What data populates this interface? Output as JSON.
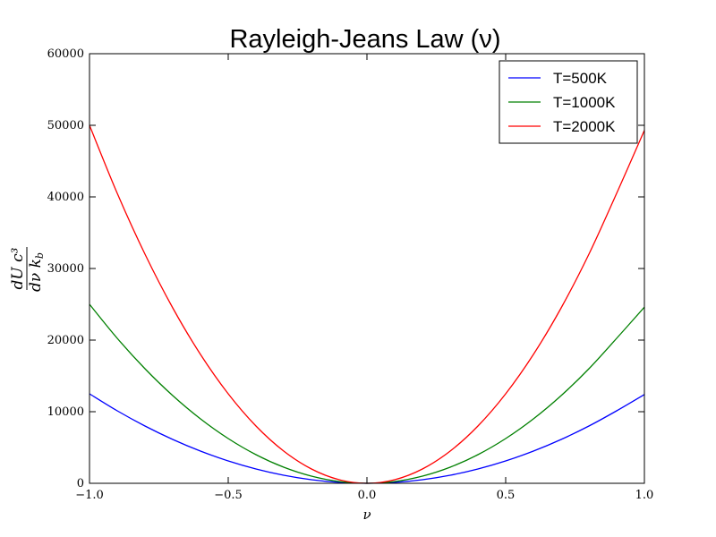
{
  "chart_data": {
    "type": "line",
    "title": "Rayleigh-Jeans Law (ν)",
    "xlabel": "ν",
    "ylabel_numerator": "dU c³",
    "ylabel_denominator": "dν k",
    "ylabel_denominator_sub": "b",
    "xlim": [
      -1.0,
      1.0
    ],
    "ylim": [
      0,
      60000
    ],
    "xticks": [
      -1.0,
      -0.5,
      0.0,
      0.5,
      1.0
    ],
    "xtick_labels": [
      "−1.0",
      "−0.5",
      "0.0",
      "0.5",
      "1.0"
    ],
    "yticks": [
      0,
      10000,
      20000,
      30000,
      40000,
      50000,
      60000
    ],
    "ytick_labels": [
      "0",
      "10000",
      "20000",
      "30000",
      "40000",
      "50000",
      "60000"
    ],
    "legend_position": "top-right",
    "grid": false,
    "x": [
      -1.0,
      -0.9,
      -0.8,
      -0.7,
      -0.6,
      -0.5,
      -0.4,
      -0.3,
      -0.2,
      -0.1,
      0.0,
      0.1,
      0.2,
      0.3,
      0.4,
      0.5,
      0.6,
      0.7,
      0.8,
      0.9,
      1.0
    ],
    "series": [
      {
        "name": "T=500K",
        "color": "#0000ff",
        "values": [
          12500,
          10125,
          8000,
          6125,
          4500,
          3125,
          2000,
          1125,
          500,
          125,
          0,
          125,
          500,
          1125,
          2000,
          3125,
          4500,
          6125,
          8000,
          10125,
          12400
        ]
      },
      {
        "name": "T=1000K",
        "color": "#008000",
        "values": [
          25000,
          20250,
          16000,
          12250,
          9000,
          6250,
          4000,
          2250,
          1000,
          250,
          0,
          250,
          1000,
          2250,
          4000,
          6250,
          9000,
          12250,
          16000,
          20250,
          24600
        ]
      },
      {
        "name": "T=2000K",
        "color": "#ff0000",
        "values": [
          50000,
          40500,
          32000,
          24500,
          18000,
          12500,
          8000,
          4500,
          2000,
          500,
          0,
          500,
          2000,
          4500,
          8000,
          12500,
          18000,
          24500,
          32000,
          40500,
          49300
        ]
      }
    ]
  }
}
